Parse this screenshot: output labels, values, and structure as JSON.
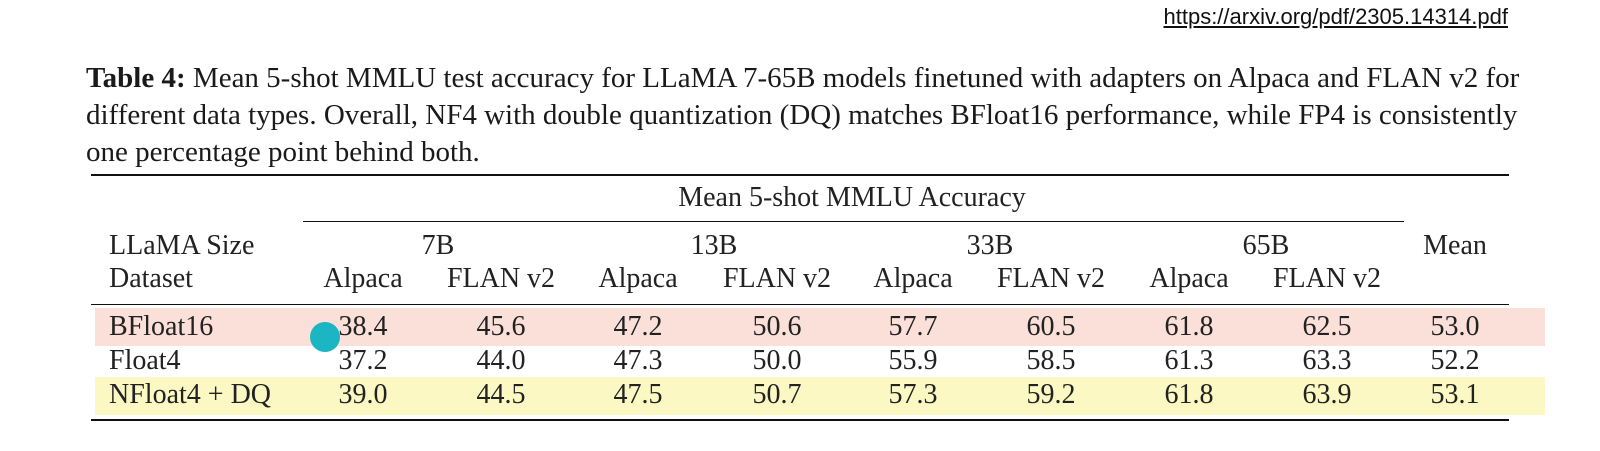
{
  "source_url": "https://arxiv.org/pdf/2305.14314.pdf",
  "caption": {
    "label": "Table 4:",
    "text": "Mean 5-shot MMLU test accuracy for LLaMA 7-65B models finetuned with adapters on Alpaca and FLAN v2 for different data types. Overall, NF4 with double quantization (DQ) matches BFloat16 performance, while FP4 is consistently one percentage point behind both."
  },
  "table": {
    "super_header": "Mean 5-shot MMLU Accuracy",
    "row_header_1": "LLaMA Size",
    "row_header_2": "Dataset",
    "sizes": [
      "7B",
      "13B",
      "33B",
      "65B"
    ],
    "datasets": [
      "Alpaca",
      "FLAN v2",
      "Alpaca",
      "FLAN v2",
      "Alpaca",
      "FLAN v2",
      "Alpaca",
      "FLAN v2"
    ],
    "mean_header": "Mean",
    "rows": [
      {
        "name": "BFloat16",
        "values": [
          "38.4",
          "45.6",
          "47.2",
          "50.6",
          "57.7",
          "60.5",
          "61.8",
          "62.5"
        ],
        "mean": "53.0",
        "highlight": "#fbe0d9"
      },
      {
        "name": "Float4",
        "values": [
          "37.2",
          "44.0",
          "47.3",
          "50.0",
          "55.9",
          "58.5",
          "61.3",
          "63.3"
        ],
        "mean": "52.2",
        "highlight": "#ffffff"
      },
      {
        "name": "NFloat4 + DQ",
        "values": [
          "39.0",
          "44.5",
          "47.5",
          "50.7",
          "57.3",
          "59.2",
          "61.8",
          "63.9"
        ],
        "mean": "53.1",
        "highlight": "#fbf8c4"
      }
    ]
  },
  "colors": {
    "cursor": "#1bb5c4",
    "rule": "#111111"
  }
}
